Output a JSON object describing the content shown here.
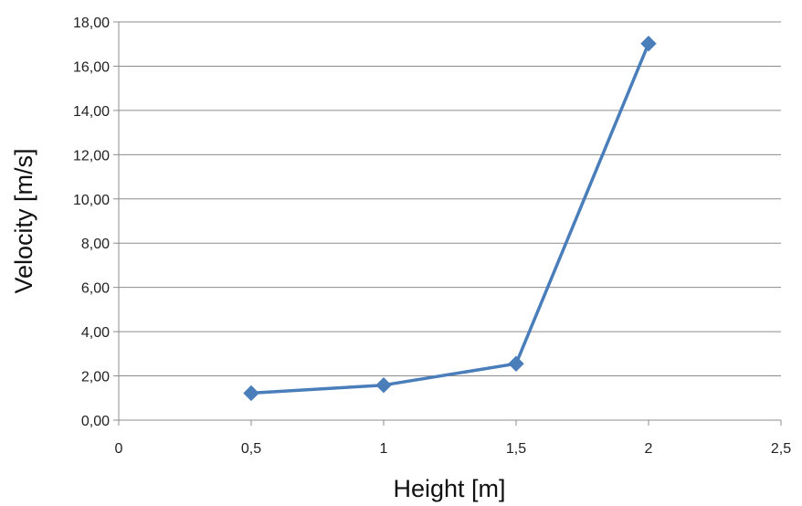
{
  "chart_data": {
    "type": "line",
    "title": "",
    "xlabel": "Height [m]",
    "ylabel": "Velocity [m/s]",
    "xlim": [
      0,
      2.5
    ],
    "ylim": [
      0,
      18
    ],
    "x_ticks": [
      {
        "value": 0,
        "label": "0"
      },
      {
        "value": 0.5,
        "label": "0,5"
      },
      {
        "value": 1,
        "label": "1"
      },
      {
        "value": 1.5,
        "label": "1,5"
      },
      {
        "value": 2,
        "label": "2"
      },
      {
        "value": 2.5,
        "label": "2,5"
      }
    ],
    "y_ticks": [
      {
        "value": 0,
        "label": "0,00"
      },
      {
        "value": 2,
        "label": "2,00"
      },
      {
        "value": 4,
        "label": "4,00"
      },
      {
        "value": 6,
        "label": "6,00"
      },
      {
        "value": 8,
        "label": "8,00"
      },
      {
        "value": 10,
        "label": "10,00"
      },
      {
        "value": 12,
        "label": "12,00"
      },
      {
        "value": 14,
        "label": "14,00"
      },
      {
        "value": 16,
        "label": "16,00"
      },
      {
        "value": 18,
        "label": "18,00"
      }
    ],
    "grid": "horizontal",
    "legend": "none",
    "series": [
      {
        "color": "#4a7ebb",
        "marker": "diamond",
        "x": [
          0.5,
          1,
          1.5,
          2
        ],
        "y": [
          1.22,
          1.58,
          2.55,
          17.02
        ]
      }
    ]
  }
}
